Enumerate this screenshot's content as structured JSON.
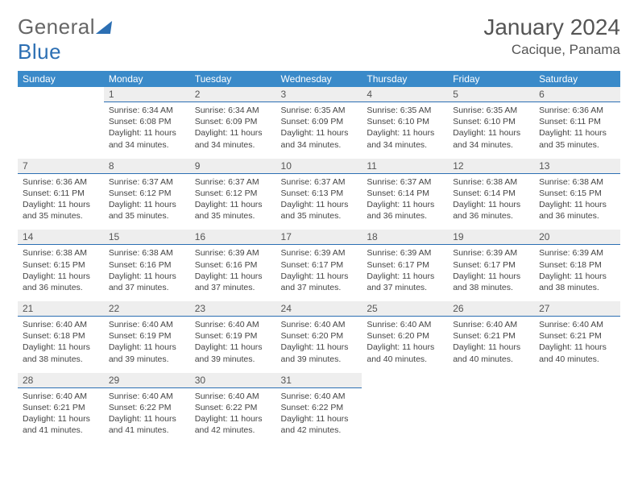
{
  "brand": {
    "part1": "General",
    "part2": "Blue"
  },
  "title": "January 2024",
  "location": "Cacique, Panama",
  "colors": {
    "header_bg": "#3a8ac9",
    "header_text": "#ffffff",
    "daynum_bg": "#eeeeee",
    "daynum_border": "#2c6fb3",
    "text": "#444444",
    "brand_grey": "#666666",
    "brand_blue": "#2c6fb3"
  },
  "weekdays": [
    "Sunday",
    "Monday",
    "Tuesday",
    "Wednesday",
    "Thursday",
    "Friday",
    "Saturday"
  ],
  "weeks": [
    [
      null,
      {
        "n": "1",
        "sr": "6:34 AM",
        "ss": "6:08 PM",
        "dl": "11 hours and 34 minutes."
      },
      {
        "n": "2",
        "sr": "6:34 AM",
        "ss": "6:09 PM",
        "dl": "11 hours and 34 minutes."
      },
      {
        "n": "3",
        "sr": "6:35 AM",
        "ss": "6:09 PM",
        "dl": "11 hours and 34 minutes."
      },
      {
        "n": "4",
        "sr": "6:35 AM",
        "ss": "6:10 PM",
        "dl": "11 hours and 34 minutes."
      },
      {
        "n": "5",
        "sr": "6:35 AM",
        "ss": "6:10 PM",
        "dl": "11 hours and 34 minutes."
      },
      {
        "n": "6",
        "sr": "6:36 AM",
        "ss": "6:11 PM",
        "dl": "11 hours and 35 minutes."
      }
    ],
    [
      {
        "n": "7",
        "sr": "6:36 AM",
        "ss": "6:11 PM",
        "dl": "11 hours and 35 minutes."
      },
      {
        "n": "8",
        "sr": "6:37 AM",
        "ss": "6:12 PM",
        "dl": "11 hours and 35 minutes."
      },
      {
        "n": "9",
        "sr": "6:37 AM",
        "ss": "6:12 PM",
        "dl": "11 hours and 35 minutes."
      },
      {
        "n": "10",
        "sr": "6:37 AM",
        "ss": "6:13 PM",
        "dl": "11 hours and 35 minutes."
      },
      {
        "n": "11",
        "sr": "6:37 AM",
        "ss": "6:14 PM",
        "dl": "11 hours and 36 minutes."
      },
      {
        "n": "12",
        "sr": "6:38 AM",
        "ss": "6:14 PM",
        "dl": "11 hours and 36 minutes."
      },
      {
        "n": "13",
        "sr": "6:38 AM",
        "ss": "6:15 PM",
        "dl": "11 hours and 36 minutes."
      }
    ],
    [
      {
        "n": "14",
        "sr": "6:38 AM",
        "ss": "6:15 PM",
        "dl": "11 hours and 36 minutes."
      },
      {
        "n": "15",
        "sr": "6:38 AM",
        "ss": "6:16 PM",
        "dl": "11 hours and 37 minutes."
      },
      {
        "n": "16",
        "sr": "6:39 AM",
        "ss": "6:16 PM",
        "dl": "11 hours and 37 minutes."
      },
      {
        "n": "17",
        "sr": "6:39 AM",
        "ss": "6:17 PM",
        "dl": "11 hours and 37 minutes."
      },
      {
        "n": "18",
        "sr": "6:39 AM",
        "ss": "6:17 PM",
        "dl": "11 hours and 37 minutes."
      },
      {
        "n": "19",
        "sr": "6:39 AM",
        "ss": "6:17 PM",
        "dl": "11 hours and 38 minutes."
      },
      {
        "n": "20",
        "sr": "6:39 AM",
        "ss": "6:18 PM",
        "dl": "11 hours and 38 minutes."
      }
    ],
    [
      {
        "n": "21",
        "sr": "6:40 AM",
        "ss": "6:18 PM",
        "dl": "11 hours and 38 minutes."
      },
      {
        "n": "22",
        "sr": "6:40 AM",
        "ss": "6:19 PM",
        "dl": "11 hours and 39 minutes."
      },
      {
        "n": "23",
        "sr": "6:40 AM",
        "ss": "6:19 PM",
        "dl": "11 hours and 39 minutes."
      },
      {
        "n": "24",
        "sr": "6:40 AM",
        "ss": "6:20 PM",
        "dl": "11 hours and 39 minutes."
      },
      {
        "n": "25",
        "sr": "6:40 AM",
        "ss": "6:20 PM",
        "dl": "11 hours and 40 minutes."
      },
      {
        "n": "26",
        "sr": "6:40 AM",
        "ss": "6:21 PM",
        "dl": "11 hours and 40 minutes."
      },
      {
        "n": "27",
        "sr": "6:40 AM",
        "ss": "6:21 PM",
        "dl": "11 hours and 40 minutes."
      }
    ],
    [
      {
        "n": "28",
        "sr": "6:40 AM",
        "ss": "6:21 PM",
        "dl": "11 hours and 41 minutes."
      },
      {
        "n": "29",
        "sr": "6:40 AM",
        "ss": "6:22 PM",
        "dl": "11 hours and 41 minutes."
      },
      {
        "n": "30",
        "sr": "6:40 AM",
        "ss": "6:22 PM",
        "dl": "11 hours and 42 minutes."
      },
      {
        "n": "31",
        "sr": "6:40 AM",
        "ss": "6:22 PM",
        "dl": "11 hours and 42 minutes."
      },
      null,
      null,
      null
    ]
  ],
  "labels": {
    "sunrise": "Sunrise:",
    "sunset": "Sunset:",
    "daylight": "Daylight:"
  }
}
